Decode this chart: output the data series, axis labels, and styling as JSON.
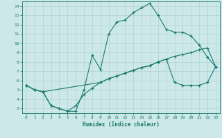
{
  "xlabel": "Humidex (Indice chaleur)",
  "bg_color": "#cce8e8",
  "line_color": "#1a7a6e",
  "grid_color": "#aacccc",
  "xlim": [
    -0.5,
    23.5
  ],
  "ylim": [
    2.5,
    14.5
  ],
  "xticks": [
    0,
    1,
    2,
    3,
    4,
    5,
    6,
    7,
    8,
    9,
    10,
    11,
    12,
    13,
    14,
    15,
    16,
    17,
    18,
    19,
    20,
    21,
    22,
    23
  ],
  "yticks": [
    3,
    4,
    5,
    6,
    7,
    8,
    9,
    10,
    11,
    12,
    13,
    14
  ],
  "line1_x": [
    0,
    1,
    2,
    3,
    4,
    5,
    6,
    7,
    8,
    9,
    10,
    11,
    12,
    13,
    14,
    15,
    16,
    17,
    18,
    19,
    20,
    21,
    22,
    23
  ],
  "line1_y": [
    5.5,
    5.0,
    4.8,
    3.3,
    3.0,
    2.7,
    2.7,
    5.0,
    8.7,
    7.2,
    11.0,
    12.3,
    12.5,
    13.3,
    13.8,
    14.3,
    13.0,
    11.5,
    11.2,
    11.2,
    10.8,
    9.8,
    8.5,
    7.5
  ],
  "line2_x": [
    0,
    1,
    2,
    9,
    10,
    11,
    12,
    13,
    14,
    15,
    16,
    17,
    18,
    19,
    20,
    21,
    22,
    23
  ],
  "line2_y": [
    5.5,
    5.0,
    4.8,
    5.8,
    6.2,
    6.5,
    6.8,
    7.1,
    7.4,
    7.6,
    8.0,
    8.3,
    8.6,
    8.8,
    9.0,
    9.3,
    9.5,
    7.5
  ],
  "line3_x": [
    0,
    1,
    2,
    3,
    4,
    5,
    6,
    7,
    8,
    9,
    10,
    11,
    12,
    13,
    14,
    15,
    16,
    17,
    18,
    19,
    20,
    21,
    22,
    23
  ],
  "line3_y": [
    5.5,
    5.0,
    4.8,
    3.3,
    3.0,
    2.7,
    3.3,
    4.5,
    5.2,
    5.8,
    6.2,
    6.5,
    6.8,
    7.1,
    7.4,
    7.6,
    8.0,
    8.3,
    5.8,
    5.5,
    5.5,
    5.5,
    5.8,
    7.5
  ]
}
